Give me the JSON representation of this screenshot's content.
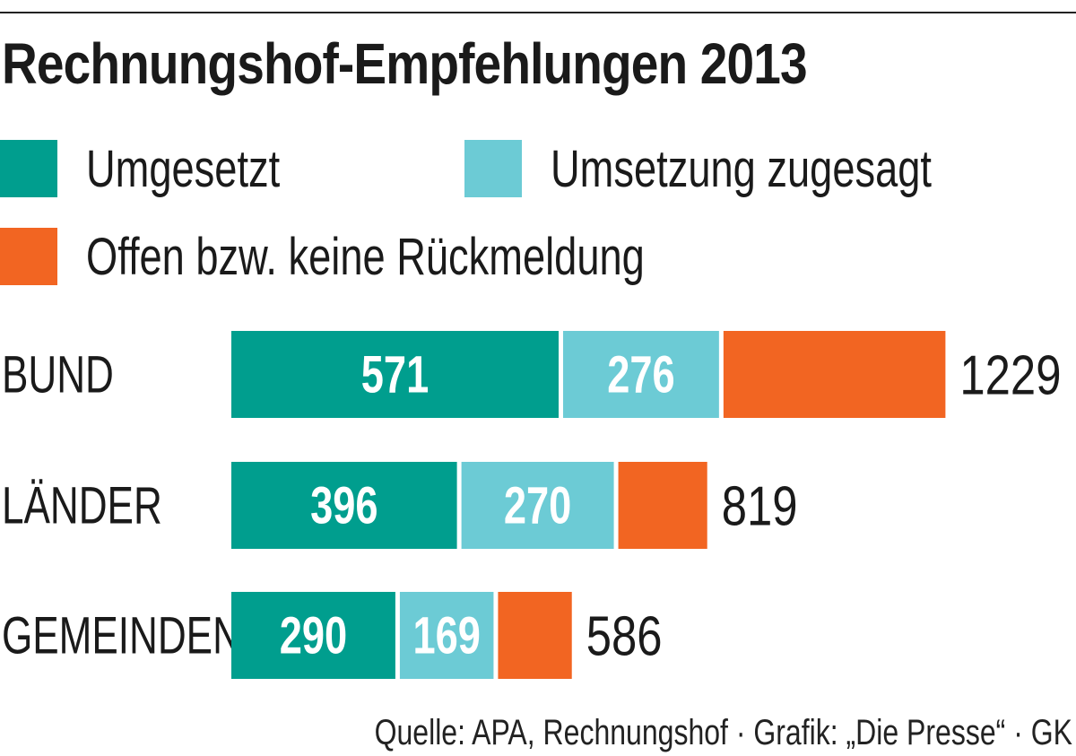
{
  "title": "Rechnungshof-Empfehlungen 2013",
  "colors": {
    "umgesetzt": "#009e8e",
    "zugesagt": "#6ccbd5",
    "offen": "#f26522"
  },
  "legend": {
    "umgesetzt": "Umgesetzt",
    "zugesagt": "Umsetzung zugesagt",
    "offen": "Offen bzw. keine Rückmeldung"
  },
  "chart_data": {
    "type": "bar",
    "orientation": "horizontal",
    "stacked": true,
    "categories": [
      "BUND",
      "LÄNDER",
      "GEMEINDEN"
    ],
    "series": [
      {
        "name": "Umgesetzt",
        "values": [
          571,
          396,
          290
        ],
        "labels": [
          "571",
          "396",
          "290"
        ]
      },
      {
        "name": "Umsetzung zugesagt",
        "values": [
          276,
          270,
          169
        ],
        "labels": [
          "276",
          "270",
          "169"
        ]
      },
      {
        "name": "Offen bzw. keine Rückmeldung",
        "values": [
          382,
          153,
          127
        ]
      }
    ],
    "totals": [
      "1229",
      "819",
      "586"
    ]
  },
  "source": "Quelle: APA, Rechnungshof · Grafik: „Die Presse“ · GK"
}
